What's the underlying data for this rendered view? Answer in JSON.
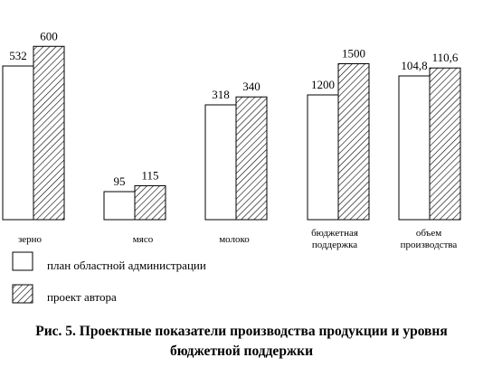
{
  "chart_data": {
    "type": "bar",
    "categories": [
      [
        "зерно"
      ],
      [
        "мясо"
      ],
      [
        "молоко"
      ],
      [
        "бюджетная",
        "поддержка"
      ],
      [
        "объем",
        "производства"
      ]
    ],
    "series": [
      {
        "name": "план областной администрации",
        "values": [
          532,
          95,
          318,
          1200,
          104.8
        ],
        "value_labels": [
          "532",
          "95",
          "318",
          "1200",
          "104,8"
        ],
        "fill": "#ffffff"
      },
      {
        "name": "проект автора",
        "values": [
          600,
          115,
          340,
          1500,
          110.6
        ],
        "value_labels": [
          "600",
          "115",
          "340",
          "1500",
          "110,6"
        ],
        "fill": "hatched"
      }
    ],
    "title": "",
    "xlabel": "",
    "ylabel": "",
    "note": ""
  },
  "caption": {
    "line1": "Рис. 5. Проектные показатели производства продукции и уровня",
    "line2": "бюджетной поддержки"
  }
}
